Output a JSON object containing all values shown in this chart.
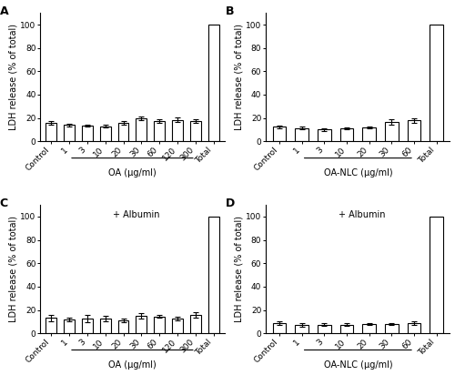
{
  "panels": {
    "A": {
      "label": "A",
      "categories": [
        "Control",
        "1",
        "3",
        "10",
        "20",
        "30",
        "60",
        "120",
        "300",
        "Total"
      ],
      "xlabel": "OA (μg/ml)",
      "xlabel_cats_first": "1",
      "xlabel_cats_last": "300",
      "values": [
        15.5,
        14.0,
        13.5,
        13.0,
        16.0,
        19.5,
        17.5,
        18.5,
        17.5,
        100.0
      ],
      "errors": [
        1.5,
        1.2,
        1.0,
        1.0,
        1.5,
        1.5,
        1.5,
        2.0,
        1.5,
        0.0
      ],
      "annotation": null,
      "ylim": [
        0,
        110
      ],
      "yticks": [
        0,
        20,
        40,
        60,
        80,
        100
      ]
    },
    "B": {
      "label": "B",
      "categories": [
        "Control",
        "1",
        "3",
        "10",
        "20",
        "30",
        "60",
        "Total"
      ],
      "xlabel": "OA-NLC (μg/ml)",
      "xlabel_cats_first": "1",
      "xlabel_cats_last": "60",
      "values": [
        12.5,
        11.5,
        10.0,
        11.0,
        12.0,
        16.5,
        18.0,
        100.0
      ],
      "errors": [
        1.0,
        1.0,
        0.8,
        0.8,
        0.8,
        2.5,
        2.0,
        0.0
      ],
      "annotation": null,
      "ylim": [
        0,
        110
      ],
      "yticks": [
        0,
        20,
        40,
        60,
        80,
        100
      ]
    },
    "C": {
      "label": "C",
      "categories": [
        "Control",
        "1",
        "3",
        "10",
        "20",
        "30",
        "60",
        "120",
        "300",
        "Total"
      ],
      "xlabel": "OA (μg/ml)",
      "xlabel_cats_first": "1",
      "xlabel_cats_last": "300",
      "values": [
        13.0,
        11.5,
        12.5,
        12.5,
        11.0,
        15.0,
        14.5,
        12.5,
        15.5,
        100.0
      ],
      "errors": [
        2.5,
        1.5,
        3.0,
        2.5,
        1.5,
        2.5,
        1.5,
        1.5,
        2.5,
        0.0
      ],
      "annotation": "+ Albumin",
      "ylim": [
        0,
        110
      ],
      "yticks": [
        0,
        20,
        40,
        60,
        80,
        100
      ]
    },
    "D": {
      "label": "D",
      "categories": [
        "Control",
        "1",
        "3",
        "10",
        "20",
        "30",
        "60",
        "Total"
      ],
      "xlabel": "OA-NLC (μg/ml)",
      "xlabel_cats_first": "1",
      "xlabel_cats_last": "60",
      "values": [
        8.5,
        7.0,
        7.5,
        7.5,
        8.0,
        8.0,
        8.5,
        100.0
      ],
      "errors": [
        1.5,
        1.5,
        1.0,
        1.0,
        1.0,
        1.0,
        1.5,
        0.0
      ],
      "annotation": "+ Albumin",
      "ylim": [
        0,
        110
      ],
      "yticks": [
        0,
        20,
        40,
        60,
        80,
        100
      ]
    }
  },
  "ylabel": "LDH release (% of total)",
  "bar_color": "#ffffff",
  "bar_edgecolor": "#000000",
  "bar_linewidth": 0.8,
  "capsize": 2,
  "elinewidth": 0.8,
  "figure_bg": "#ffffff",
  "fontsize_label": 7,
  "fontsize_tick": 6.5,
  "fontsize_panel": 9,
  "fontsize_annotation": 7
}
